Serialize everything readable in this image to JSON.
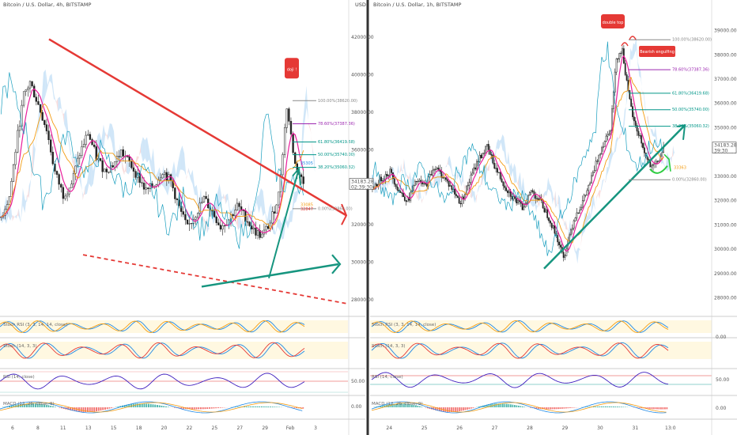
{
  "left_panel": {
    "title": "Bitcoin / U.S. Dollar, 4h, BITSTAMP",
    "currency": "USD",
    "price_ticks": [
      "42000.00",
      "40000.00",
      "38000.00",
      "36000.00",
      "34000.00",
      "32000.00",
      "30000.00",
      "28000.00"
    ],
    "price_tick_values": [
      42000,
      40000,
      38000,
      36000,
      34000,
      32000,
      30000,
      28000
    ],
    "current_price": "34183.28",
    "countdown": "02:39:30",
    "x_ticks": [
      "6",
      "8",
      "11",
      "13",
      "15",
      "18",
      "20",
      "22",
      "25",
      "27",
      "29",
      "Feb",
      "3"
    ],
    "callout": "doji !",
    "fib_levels": [
      {
        "label": "100.00%(38620.00)",
        "color": "#888888"
      },
      {
        "label": "78.60%(37387.36)",
        "color": "#9c27b0"
      },
      {
        "label": "61.80%(36419.68)",
        "color": "#009688"
      },
      {
        "label": "50.00%(35740.00)",
        "color": "#009688"
      },
      {
        "label": "38.20%(35060.32)",
        "color": "#009688"
      },
      {
        "label": "0.00%(32860.00)",
        "color": "#888888"
      }
    ],
    "annotations": [
      "35305",
      "33085",
      "32847"
    ],
    "indicators": [
      "Stoch RSI (3, 3, 14, 14, close)",
      "Stoch (14, 3, 3)",
      "RSI (14, close)",
      "MACD (12, 26, close, 9)"
    ],
    "rsi_level": "50.00",
    "macd_level": "0.00"
  },
  "right_panel": {
    "title": "Bitcoin / U.S. Dollar, 1h, BITSTAMP",
    "price_ticks": [
      "39000.00",
      "38000.00",
      "37000.00",
      "36000.00",
      "35000.00",
      "34000.00",
      "33000.00",
      "32000.00",
      "31000.00",
      "30000.00",
      "29000.00",
      "28000.00"
    ],
    "price_tick_values": [
      39000,
      38000,
      37000,
      36000,
      35000,
      34000,
      33000,
      32000,
      31000,
      30000,
      29000,
      28000
    ],
    "current_price": "34183.28",
    "countdown": "39:30",
    "x_ticks": [
      "24",
      "25",
      "26",
      "27",
      "28",
      "29",
      "30",
      "31",
      "13:0"
    ],
    "callout_top": "double top",
    "callout_bearish": "Bearish engulfing",
    "fib_levels": [
      {
        "label": "100.00%(38620.00)",
        "color": "#888888"
      },
      {
        "label": "78.60%(37387.36)",
        "color": "#9c27b0"
      },
      {
        "label": "61.80%(36419.68)",
        "color": "#009688"
      },
      {
        "label": "50.00%(35740.00)",
        "color": "#009688"
      },
      {
        "label": "38.20%(35060.32)",
        "color": "#009688"
      },
      {
        "label": "0.00%(32860.00)",
        "color": "#888888"
      }
    ],
    "annotation": "33363",
    "indicators": [
      "Stoch RSI (3, 3, 14, 14, close)",
      "Stoch (14, 3, 3)",
      "RSI (14, close)",
      "MACD (12, 26, close, 9)"
    ],
    "stoch_level": "0.00",
    "rsi_level": "50.00",
    "macd_level": "0.00"
  },
  "colors": {
    "up": "#26a69a",
    "down": "#222222",
    "ma_pink": "#e91e9c",
    "ma_orange": "#f39c12",
    "ichimoku": "#1a9fbf",
    "red_trend": "#e53935",
    "teal_trend": "#16957f",
    "cloud_blue": "#bcdcf5",
    "cloud_red": "#f6cdcd",
    "callout": "#e53935"
  },
  "chart_data": [
    {
      "type": "candlestick",
      "title": "Bitcoin / U.S. Dollar, 4h, BITSTAMP",
      "x_labels": [
        "6",
        "8",
        "11",
        "13",
        "15",
        "18",
        "20",
        "22",
        "25",
        "27",
        "29",
        "Feb",
        "3"
      ],
      "ylim": [
        27200,
        43400
      ],
      "approx_close_path": [
        [
          0,
          32400
        ],
        [
          4,
          33500
        ],
        [
          8,
          36800
        ],
        [
          11,
          38900
        ],
        [
          14,
          39600
        ],
        [
          18,
          38400
        ],
        [
          22,
          37100
        ],
        [
          26,
          34800
        ],
        [
          30,
          33600
        ],
        [
          34,
          34200
        ],
        [
          38,
          35800
        ],
        [
          42,
          36900
        ],
        [
          46,
          35600
        ],
        [
          50,
          34900
        ],
        [
          54,
          35200
        ],
        [
          58,
          35900
        ],
        [
          62,
          35300
        ],
        [
          66,
          34600
        ],
        [
          70,
          33800
        ],
        [
          74,
          34100
        ],
        [
          78,
          34900
        ],
        [
          82,
          34300
        ],
        [
          86,
          32900
        ],
        [
          90,
          31800
        ],
        [
          94,
          32600
        ],
        [
          98,
          33400
        ],
        [
          102,
          32700
        ],
        [
          106,
          31900
        ],
        [
          110,
          32300
        ],
        [
          114,
          33000
        ],
        [
          118,
          32400
        ],
        [
          122,
          31700
        ],
        [
          126,
          31400
        ],
        [
          130,
          32100
        ],
        [
          134,
          33600
        ],
        [
          138,
          38300
        ],
        [
          142,
          35200
        ],
        [
          146,
          34200
        ]
      ],
      "fib_retracement": [
        100.0,
        78.6,
        61.8,
        50.0,
        38.2,
        0.0
      ]
    },
    {
      "type": "candlestick",
      "title": "Bitcoin / U.S. Dollar, 1h, BITSTAMP",
      "x_labels": [
        "24",
        "25",
        "26",
        "27",
        "28",
        "29",
        "30",
        "31",
        "13:0"
      ],
      "ylim": [
        27300,
        39800
      ],
      "approx_close_path": [
        [
          0,
          32500
        ],
        [
          6,
          32900
        ],
        [
          12,
          33200
        ],
        [
          18,
          32400
        ],
        [
          24,
          32000
        ],
        [
          30,
          32800
        ],
        [
          36,
          32600
        ],
        [
          42,
          33400
        ],
        [
          48,
          33000
        ],
        [
          54,
          32500
        ],
        [
          60,
          31900
        ],
        [
          66,
          32800
        ],
        [
          72,
          33700
        ],
        [
          78,
          34200
        ],
        [
          84,
          33300
        ],
        [
          90,
          32600
        ],
        [
          96,
          32100
        ],
        [
          102,
          31700
        ],
        [
          108,
          32400
        ],
        [
          114,
          32000
        ],
        [
          120,
          31300
        ],
        [
          126,
          30400
        ],
        [
          130,
          29600
        ],
        [
          134,
          30600
        ],
        [
          138,
          31400
        ],
        [
          142,
          31800
        ],
        [
          146,
          32400
        ],
        [
          150,
          33100
        ],
        [
          154,
          33900
        ],
        [
          158,
          34500
        ],
        [
          162,
          35000
        ],
        [
          166,
          37900
        ],
        [
          170,
          38200
        ],
        [
          174,
          36400
        ],
        [
          178,
          35200
        ],
        [
          182,
          34600
        ],
        [
          186,
          33800
        ],
        [
          190,
          33300
        ],
        [
          194,
          33600
        ],
        [
          198,
          34100
        ]
      ],
      "fib_retracement": [
        100.0,
        78.6,
        61.8,
        50.0,
        38.2,
        0.0
      ]
    }
  ]
}
